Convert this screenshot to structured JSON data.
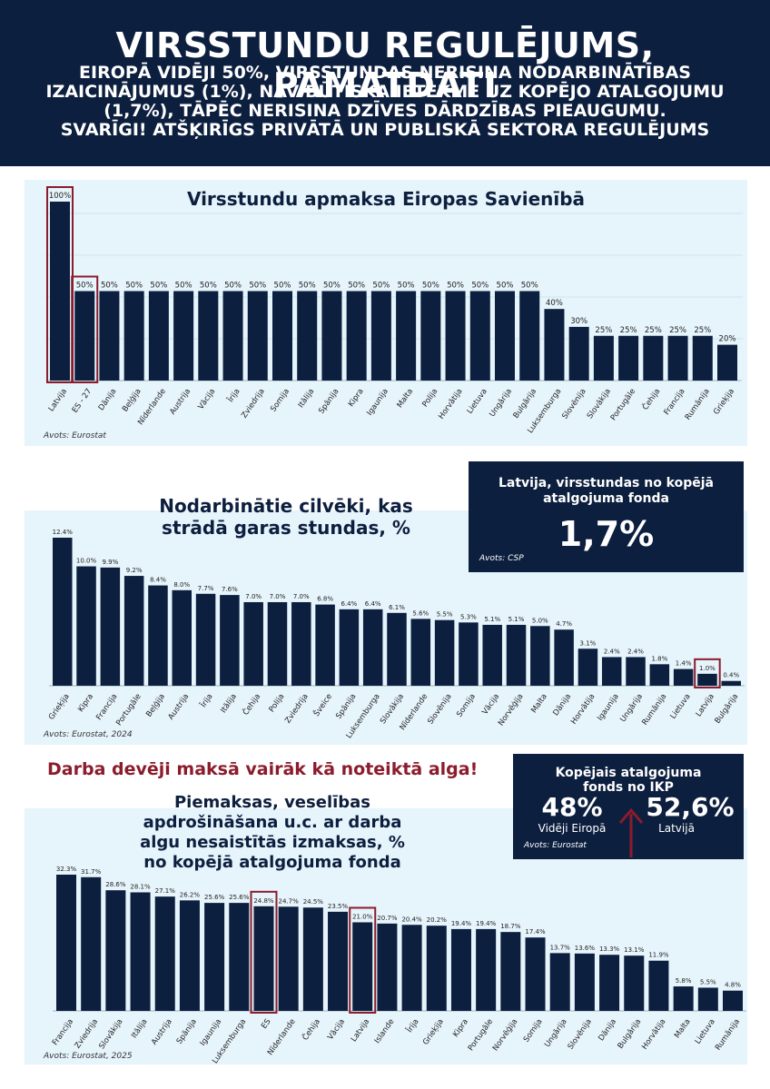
{
  "header": {
    "title": "VIRSSTUNDU REGULĒJUMS, PAMATDATI",
    "subtitle_lines": [
      "EIROPĀ VIDĒJI 50%, VIRSSTUNDAS NERISINA NODARBINĀTĪBAS",
      "IZAICINĀJUMUS (1%), NAV BŪTISKA IETEKME UZ KOPĒJO ATALGOJUMU",
      "(1,7%), TĀPĒC NERISINA DZĪVES DĀRDZĪBAS PIEAUGUMU.",
      "SVARĪGI! ATŠĶIRĪGS PRIVĀTĀ UN PUBLISKĀ SEKTORA REGULĒJUMS"
    ]
  },
  "colors": {
    "bar": "#0d1f3f",
    "highlight": "#8b1c2c",
    "panel": "#e6f4fb",
    "header": "#0d1f3f"
  },
  "chart_data": [
    {
      "type": "bar",
      "title": "Virsstundu apmaksa Eiropas Savienībā",
      "source": "Avots: Eurostat",
      "categories": [
        "Latvija",
        "ES - 27",
        "Dānija",
        "Beļģija",
        "Nīderlande",
        "Austrija",
        "Vācija",
        "Īrija",
        "Zviedrija",
        "Somija",
        "Itālija",
        "Spānija",
        "Kipra",
        "Igaunija",
        "Malta",
        "Polija",
        "Horvātija",
        "Lietuva",
        "Ungārija",
        "Bulgārija",
        "Luksemburga",
        "Slovēnija",
        "Slovākija",
        "Portugāle",
        "Čehija",
        "Francija",
        "Rumānija",
        "Grieķija"
      ],
      "values": [
        100,
        50,
        50,
        50,
        50,
        50,
        50,
        50,
        50,
        50,
        50,
        50,
        50,
        50,
        50,
        50,
        50,
        50,
        50,
        50,
        40,
        30,
        25,
        25,
        25,
        25,
        25,
        20
      ],
      "labels": [
        "100%",
        "50%",
        "50%",
        "50%",
        "50%",
        "50%",
        "50%",
        "50%",
        "50%",
        "50%",
        "50%",
        "50%",
        "50%",
        "50%",
        "50%",
        "50%",
        "50%",
        "50%",
        "50%",
        "50%",
        "40%",
        "30%",
        "25%",
        "25%",
        "25%",
        "25%",
        "25%",
        "20%"
      ],
      "highlighted": [
        "Latvija",
        "ES - 27"
      ],
      "ylim": [
        0,
        110
      ],
      "grid": true
    },
    {
      "type": "bar",
      "title": "Nodarbinātie cilvēki, kas strādā garas stundas, %",
      "source": "Avots: Eurostat, 2024",
      "categories": [
        "Grieķija",
        "Kipra",
        "Francija",
        "Portugāle",
        "Beļģija",
        "Austrija",
        "Īrija",
        "Itālija",
        "Čehija",
        "Polija",
        "Zviedrija",
        "Šveice",
        "Spānija",
        "Luksemburga",
        "Slovākija",
        "Nīderlande",
        "Slovēnija",
        "Somija",
        "Vācija",
        "Norvēģija",
        "Malta",
        "Dānija",
        "Horvātija",
        "Igaunija",
        "Ungārija",
        "Rumānija",
        "Lietuva",
        "Latvija",
        "Bulgārija"
      ],
      "values": [
        12.4,
        10.0,
        9.9,
        9.2,
        8.4,
        8.0,
        7.7,
        7.6,
        7.0,
        7.0,
        7.0,
        6.8,
        6.4,
        6.4,
        6.1,
        5.6,
        5.5,
        5.3,
        5.1,
        5.1,
        5.0,
        4.7,
        3.1,
        2.4,
        2.4,
        1.8,
        1.4,
        1.0,
        0.4
      ],
      "labels": [
        "12.4%",
        "10.0%",
        "9.9%",
        "9.2%",
        "8.4%",
        "8.0%",
        "7.7%",
        "7.6%",
        "7.0%",
        "7.0%",
        "7.0%",
        "6.8%",
        "6.4%",
        "6.4%",
        "6.1%",
        "5.6%",
        "5.5%",
        "5.3%",
        "5.1%",
        "5.1%",
        "5.0%",
        "4.7%",
        "3.1%",
        "2.4%",
        "2.4%",
        "1.8%",
        "1.4%",
        "1.0%",
        "0.4%"
      ],
      "highlighted": [
        "Latvija"
      ],
      "ylim": [
        0,
        13
      ]
    },
    {
      "type": "bar",
      "title": "Piemaksas, veselības apdrošināšana u.c. ar darba algu nesaistītās izmaksas, % no kopējā atalgojuma fonda",
      "source": "Avots: Eurostat, 2025",
      "categories": [
        "Francija",
        "Zviedrija",
        "Slovākija",
        "Itālija",
        "Austrija",
        "Spānija",
        "Igaunija",
        "Luksemburga",
        "ES",
        "Nīderlande",
        "Čehija",
        "Vācija",
        "Latvija",
        "Islande",
        "Īrija",
        "Grieķija",
        "Kipra",
        "Portugāle",
        "Norvēģija",
        "Somija",
        "Ungārija",
        "Slovēnija",
        "Dānija",
        "Bulgārija",
        "Horvātija",
        "Malta",
        "Lietuva",
        "Rumānija"
      ],
      "values": [
        32.3,
        31.7,
        28.6,
        28.1,
        27.1,
        26.2,
        25.6,
        25.6,
        24.8,
        24.7,
        24.5,
        23.5,
        21.0,
        20.7,
        20.4,
        20.2,
        19.4,
        19.4,
        18.7,
        17.4,
        13.7,
        13.6,
        13.3,
        13.1,
        11.9,
        5.8,
        5.5,
        4.8
      ],
      "labels": [
        "32.3%",
        "31.7%",
        "28.6%",
        "28.1%",
        "27.1%",
        "26.2%",
        "25.6%",
        "25.6%",
        "24.8%",
        "24.7%",
        "24.5%",
        "23.5%",
        "21.0%",
        "20.7%",
        "20.4%",
        "20.2%",
        "19.4%",
        "19.4%",
        "18.7%",
        "17.4%",
        "13.7%",
        "13.6%",
        "13.3%",
        "13.1%",
        "11.9%",
        "5.8%",
        "5.5%",
        "4.8%"
      ],
      "highlighted": [
        "ES",
        "Latvija"
      ],
      "ylim": [
        0,
        33
      ]
    }
  ],
  "box_latvia": {
    "title_lines": [
      "Latvija, virsstundas no kopējā",
      "atalgojuma fonda"
    ],
    "value": "1,7%",
    "source": "Avots: CSP"
  },
  "red_heading": "Darba devēji maksā vairāk kā noteiktā alga!",
  "box_gdp": {
    "title_lines": [
      "Kopējais atalgojuma",
      "fonds no IKP"
    ],
    "left_value": "48%",
    "left_label": "Vidēji Eiropā",
    "right_value": "52,6%",
    "right_label": "Latvijā",
    "source": "Avots: Eurostat",
    "arrow_icon": "up-arrow-icon"
  }
}
